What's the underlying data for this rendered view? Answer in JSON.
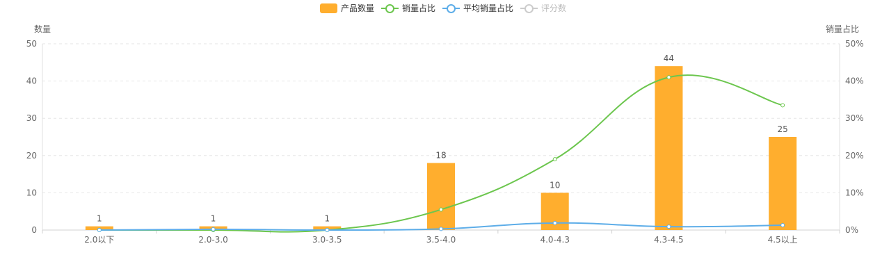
{
  "legend": [
    {
      "label": "产品数量",
      "kind": "bar",
      "color": "#FFAE2E",
      "active": true
    },
    {
      "label": "销量占比",
      "kind": "line",
      "color": "#6CC64E",
      "active": true
    },
    {
      "label": "平均销量占比",
      "kind": "line",
      "color": "#5DADE8",
      "active": true
    },
    {
      "label": "评分数",
      "kind": "line",
      "color": "#CCCCCC",
      "active": false
    }
  ],
  "chart_data": {
    "type": "bar",
    "categories": [
      "2.0以下",
      "2.0-3.0",
      "3.0-3.5",
      "3.5-4.0",
      "4.0-4.3",
      "4.3-4.5",
      "4.5以上"
    ],
    "series": [
      {
        "name": "产品数量",
        "type": "bar",
        "axis": "left",
        "color": "#FFAE2E",
        "values": [
          1,
          1,
          1,
          18,
          10,
          44,
          25
        ],
        "labels": [
          "1",
          "1",
          "1",
          "18",
          "10",
          "44",
          "25"
        ]
      },
      {
        "name": "销量占比",
        "type": "line",
        "axis": "right",
        "color": "#6CC64E",
        "values": [
          0,
          0,
          0,
          5.5,
          19,
          41,
          33.5
        ]
      },
      {
        "name": "平均销量占比",
        "type": "line",
        "axis": "right",
        "color": "#5DADE8",
        "values": [
          0,
          0.2,
          0,
          0.3,
          1.9,
          0.9,
          1.3
        ]
      }
    ],
    "ylabel": "数量",
    "y2label": "销量占比",
    "ylim": [
      0,
      50
    ],
    "y2lim": [
      0,
      50
    ],
    "yticks": [
      "0",
      "10",
      "20",
      "30",
      "40",
      "50"
    ],
    "y2ticks": [
      "0%",
      "10%",
      "20%",
      "30%",
      "40%",
      "50%"
    ],
    "grid": true,
    "legend_position": "top-center"
  }
}
